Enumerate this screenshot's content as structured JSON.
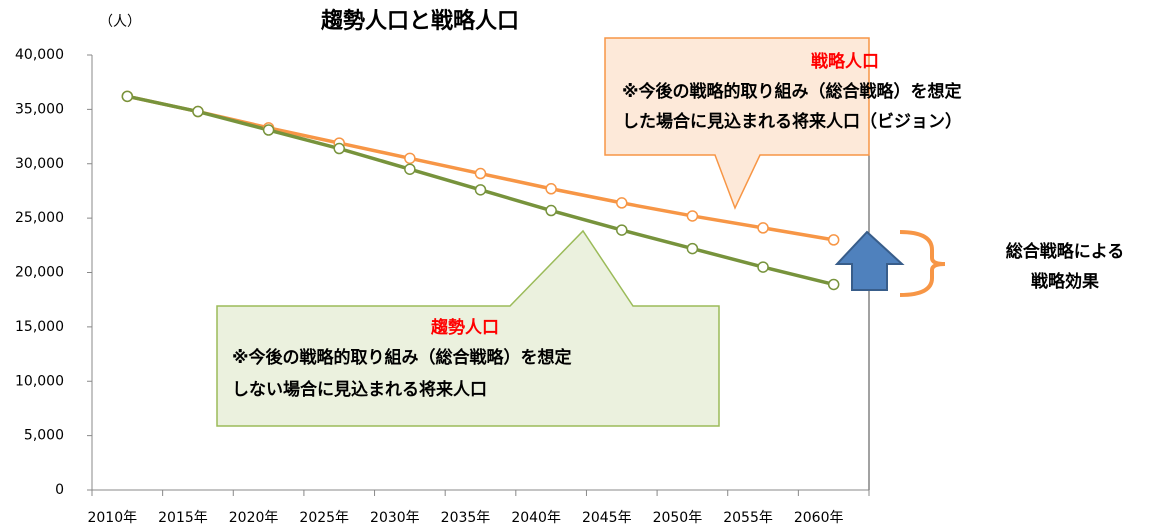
{
  "chart_data": {
    "type": "line",
    "title": "趨勢人口と戦略人口",
    "y_unit": "（人）",
    "categories": [
      "2010年",
      "2015年",
      "2020年",
      "2025年",
      "2030年",
      "2035年",
      "2040年",
      "2045年",
      "2050年",
      "2055年",
      "2060年"
    ],
    "series": [
      {
        "name": "戦略人口",
        "color": "#f79646",
        "values": [
          36200,
          34800,
          33300,
          31900,
          30500,
          29100,
          27700,
          26400,
          25200,
          24100,
          23000
        ]
      },
      {
        "name": "趨勢人口",
        "color": "#77933c",
        "values": [
          36200,
          34800,
          33100,
          31400,
          29500,
          27600,
          25700,
          23900,
          22200,
          20500,
          18900
        ]
      }
    ],
    "ylim": [
      0,
      40000
    ],
    "yticks": [
      0,
      {
        "value": 5000,
        "label": "5,000"
      },
      {
        "value": 10000,
        "label": "10,000"
      },
      {
        "value": 15000,
        "label": "15,000"
      },
      {
        "value": 20000,
        "label": "20,000"
      },
      {
        "value": 25000,
        "label": "25,000"
      },
      {
        "value": 30000,
        "label": "30,000"
      },
      {
        "value": 35000,
        "label": "35,000"
      },
      {
        "value": 40000,
        "label": "40,000"
      }
    ],
    "grid": false,
    "annotations": {
      "strategy": {
        "title": "戦略人口",
        "lines": [
          "※今後の戦略的取り組み（総合戦略）を想定",
          "した場合に見込まれる将来人口（ビジョン）"
        ]
      },
      "trend": {
        "title": "趨勢人口",
        "lines": [
          "※今後の戦略的取り組み（総合戦略）を想定",
          "しない場合に見込まれる将来人口"
        ]
      },
      "effect": [
        "総合戦略による",
        "戦略効果"
      ]
    }
  }
}
